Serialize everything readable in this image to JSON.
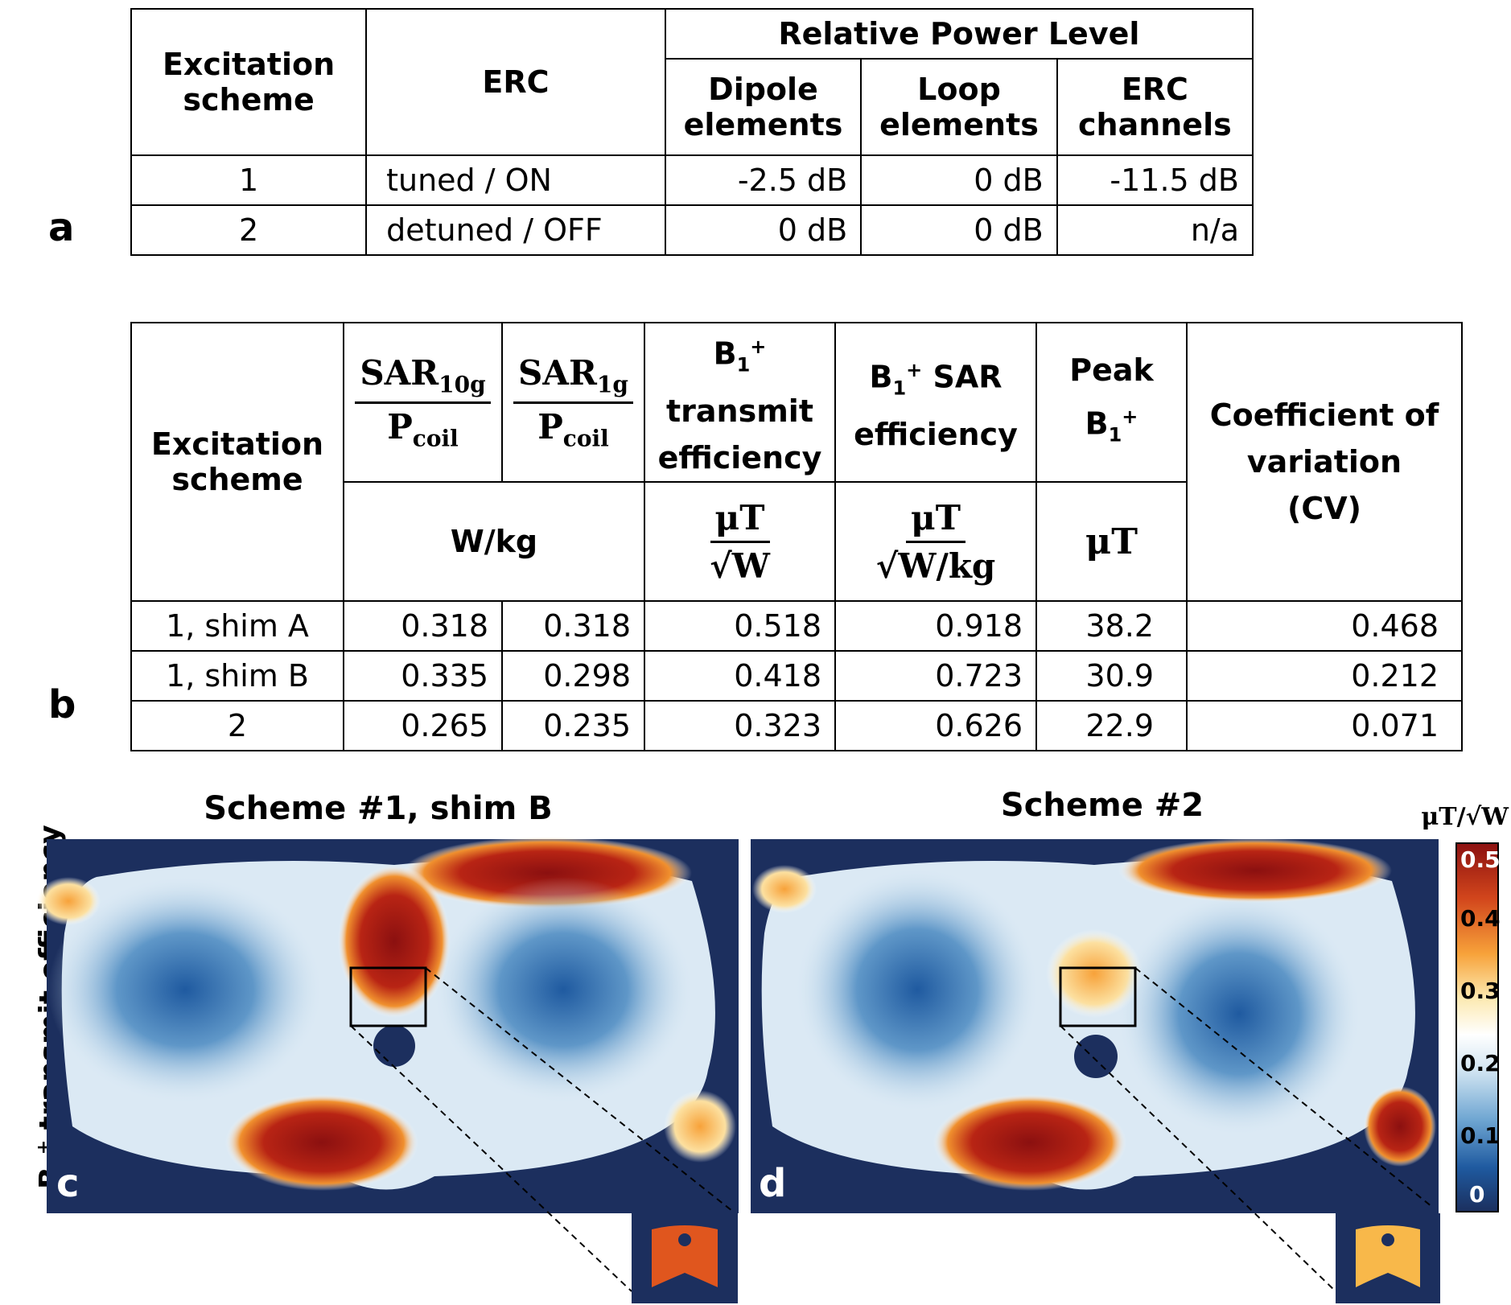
{
  "table_a": {
    "panel_label": "a",
    "h_scheme": "Excitation scheme",
    "h_erc": "ERC",
    "h_power": "Relative Power Level",
    "h_dipole": "Dipole elements",
    "h_loop": "Loop elements",
    "h_channels": "ERC channels",
    "rows": [
      {
        "scheme": "1",
        "erc": "tuned / ON",
        "dipole": "-2.5 dB",
        "loop": "0 dB",
        "channels": "-11.5 dB"
      },
      {
        "scheme": "2",
        "erc": "detuned / OFF",
        "dipole": "0 dB",
        "loop": "0 dB",
        "channels": "n/a"
      }
    ]
  },
  "table_b": {
    "panel_label": "b",
    "h_scheme": "Excitation scheme",
    "h_sar10_num": "SAR",
    "h_sar10_sub": "10g",
    "h_sar1_num": "SAR",
    "h_sar1_sub": "1g",
    "h_pcoil": "P",
    "h_pcoil_sub": "coil",
    "h_b1": "B",
    "h_sub1": "1",
    "h_sup": "+",
    "h_tx_line2": "transmit",
    "h_tx_line3": "efficiency",
    "h_sar_eff_tail": " SAR",
    "h_sar_eff_line2": "efficiency",
    "h_peak": "Peak",
    "h_cv": "Coefficient of variation (CV)",
    "u_sar": "W/kg",
    "u_tx_num": "μT",
    "u_tx_den": "√W",
    "u_eff_num": "μT",
    "u_eff_den": "√W/kg",
    "u_peak": "μT",
    "rows": [
      {
        "scheme": "1, shim A",
        "sar10": "0.318",
        "sar1": "0.318",
        "tx": "0.518",
        "eff": "0.918",
        "peak": "38.2",
        "cv": "0.468"
      },
      {
        "scheme": "1, shim B",
        "sar10": "0.335",
        "sar1": "0.298",
        "tx": "0.418",
        "eff": "0.723",
        "peak": "30.9",
        "cv": "0.212"
      },
      {
        "scheme": "2",
        "sar10": "0.265",
        "sar1": "0.235",
        "tx": "0.323",
        "eff": "0.626",
        "peak": "22.9",
        "cv": "0.071"
      }
    ]
  },
  "maps": {
    "ylabel_pre": "B",
    "ylabel_sub": "1",
    "ylabel_sup": "+",
    "ylabel_post": " transmit efficiency",
    "panel_c": {
      "label": "c",
      "title": "Scheme #1, shim B"
    },
    "panel_d": {
      "label": "d",
      "title": "Scheme #2"
    },
    "colorbar": {
      "unit": "μT/√W",
      "ticks": [
        "0.5",
        "0.4",
        "0.3",
        "0.2",
        "0.1",
        "0"
      ],
      "colors": [
        "#8b1010",
        "#d2461c",
        "#f7a23a",
        "#fce9b0",
        "#ffffff",
        "#cfe3f1",
        "#6fa6d2",
        "#1f5aa0",
        "#1b2f5e"
      ]
    },
    "background_color": "#1c2f5e"
  }
}
